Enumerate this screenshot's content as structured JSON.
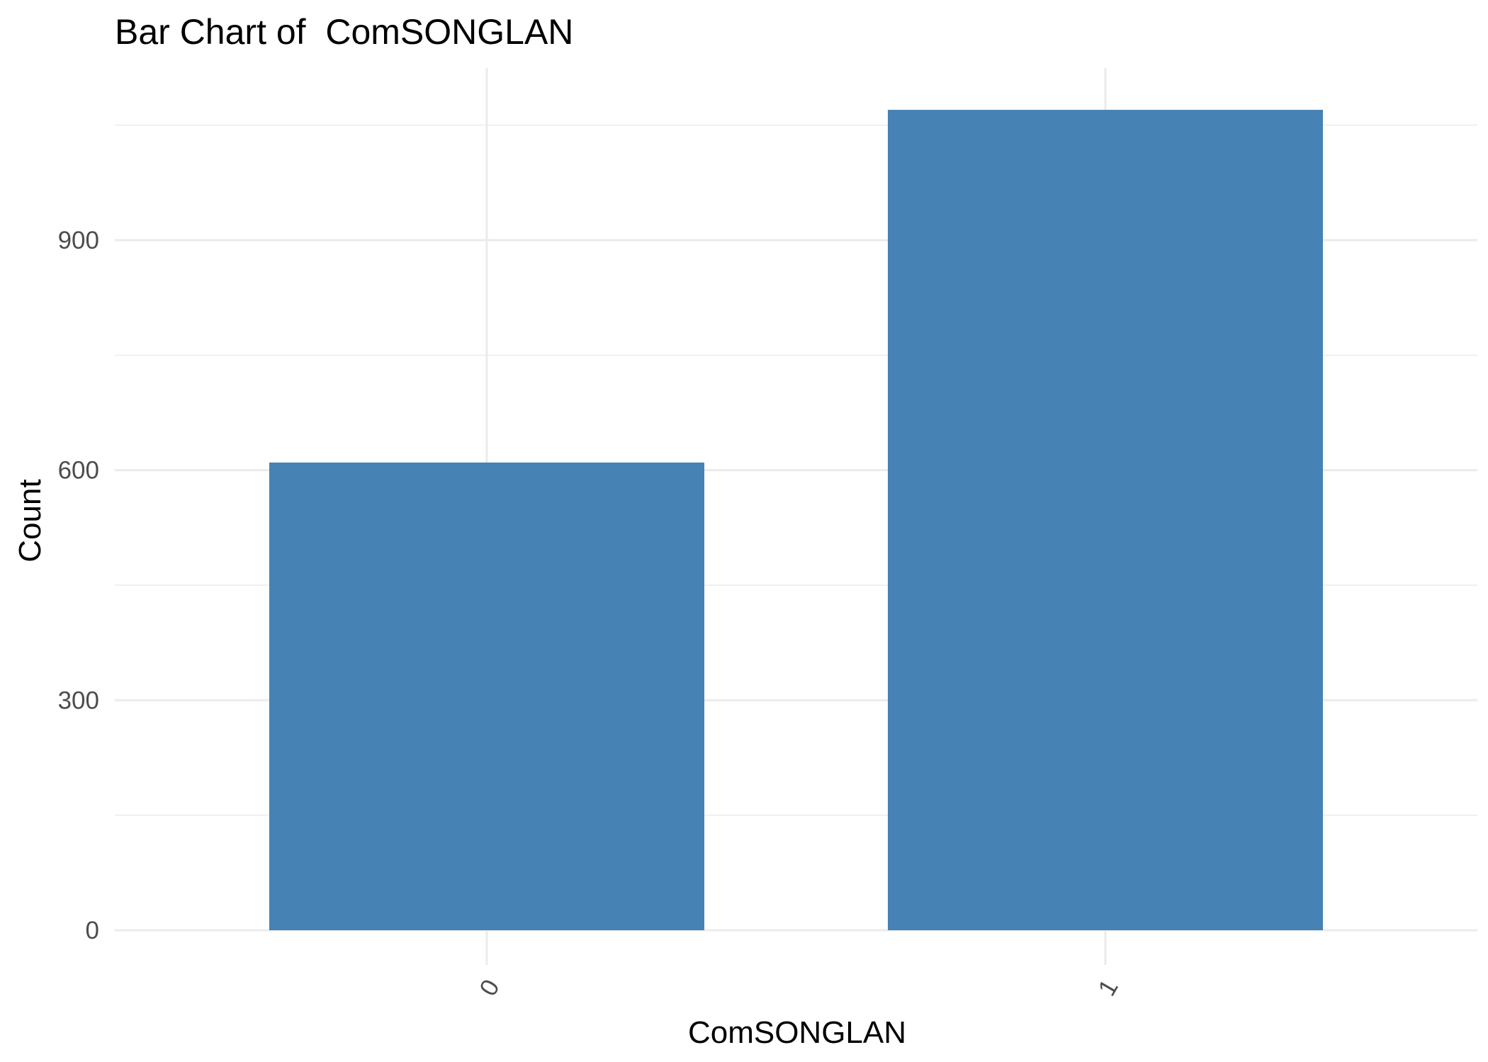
{
  "chart_data": {
    "type": "bar",
    "title": "Bar Chart of  ComSONGLAN",
    "xlabel": "ComSONGLAN",
    "ylabel": "Count",
    "categories": [
      "0",
      "1"
    ],
    "values": [
      610,
      1070
    ],
    "ylim": [
      0,
      1123
    ],
    "yticks": [
      0,
      300,
      600,
      900
    ],
    "bar_color": "#4682b4",
    "grid": true,
    "legend": "none"
  }
}
